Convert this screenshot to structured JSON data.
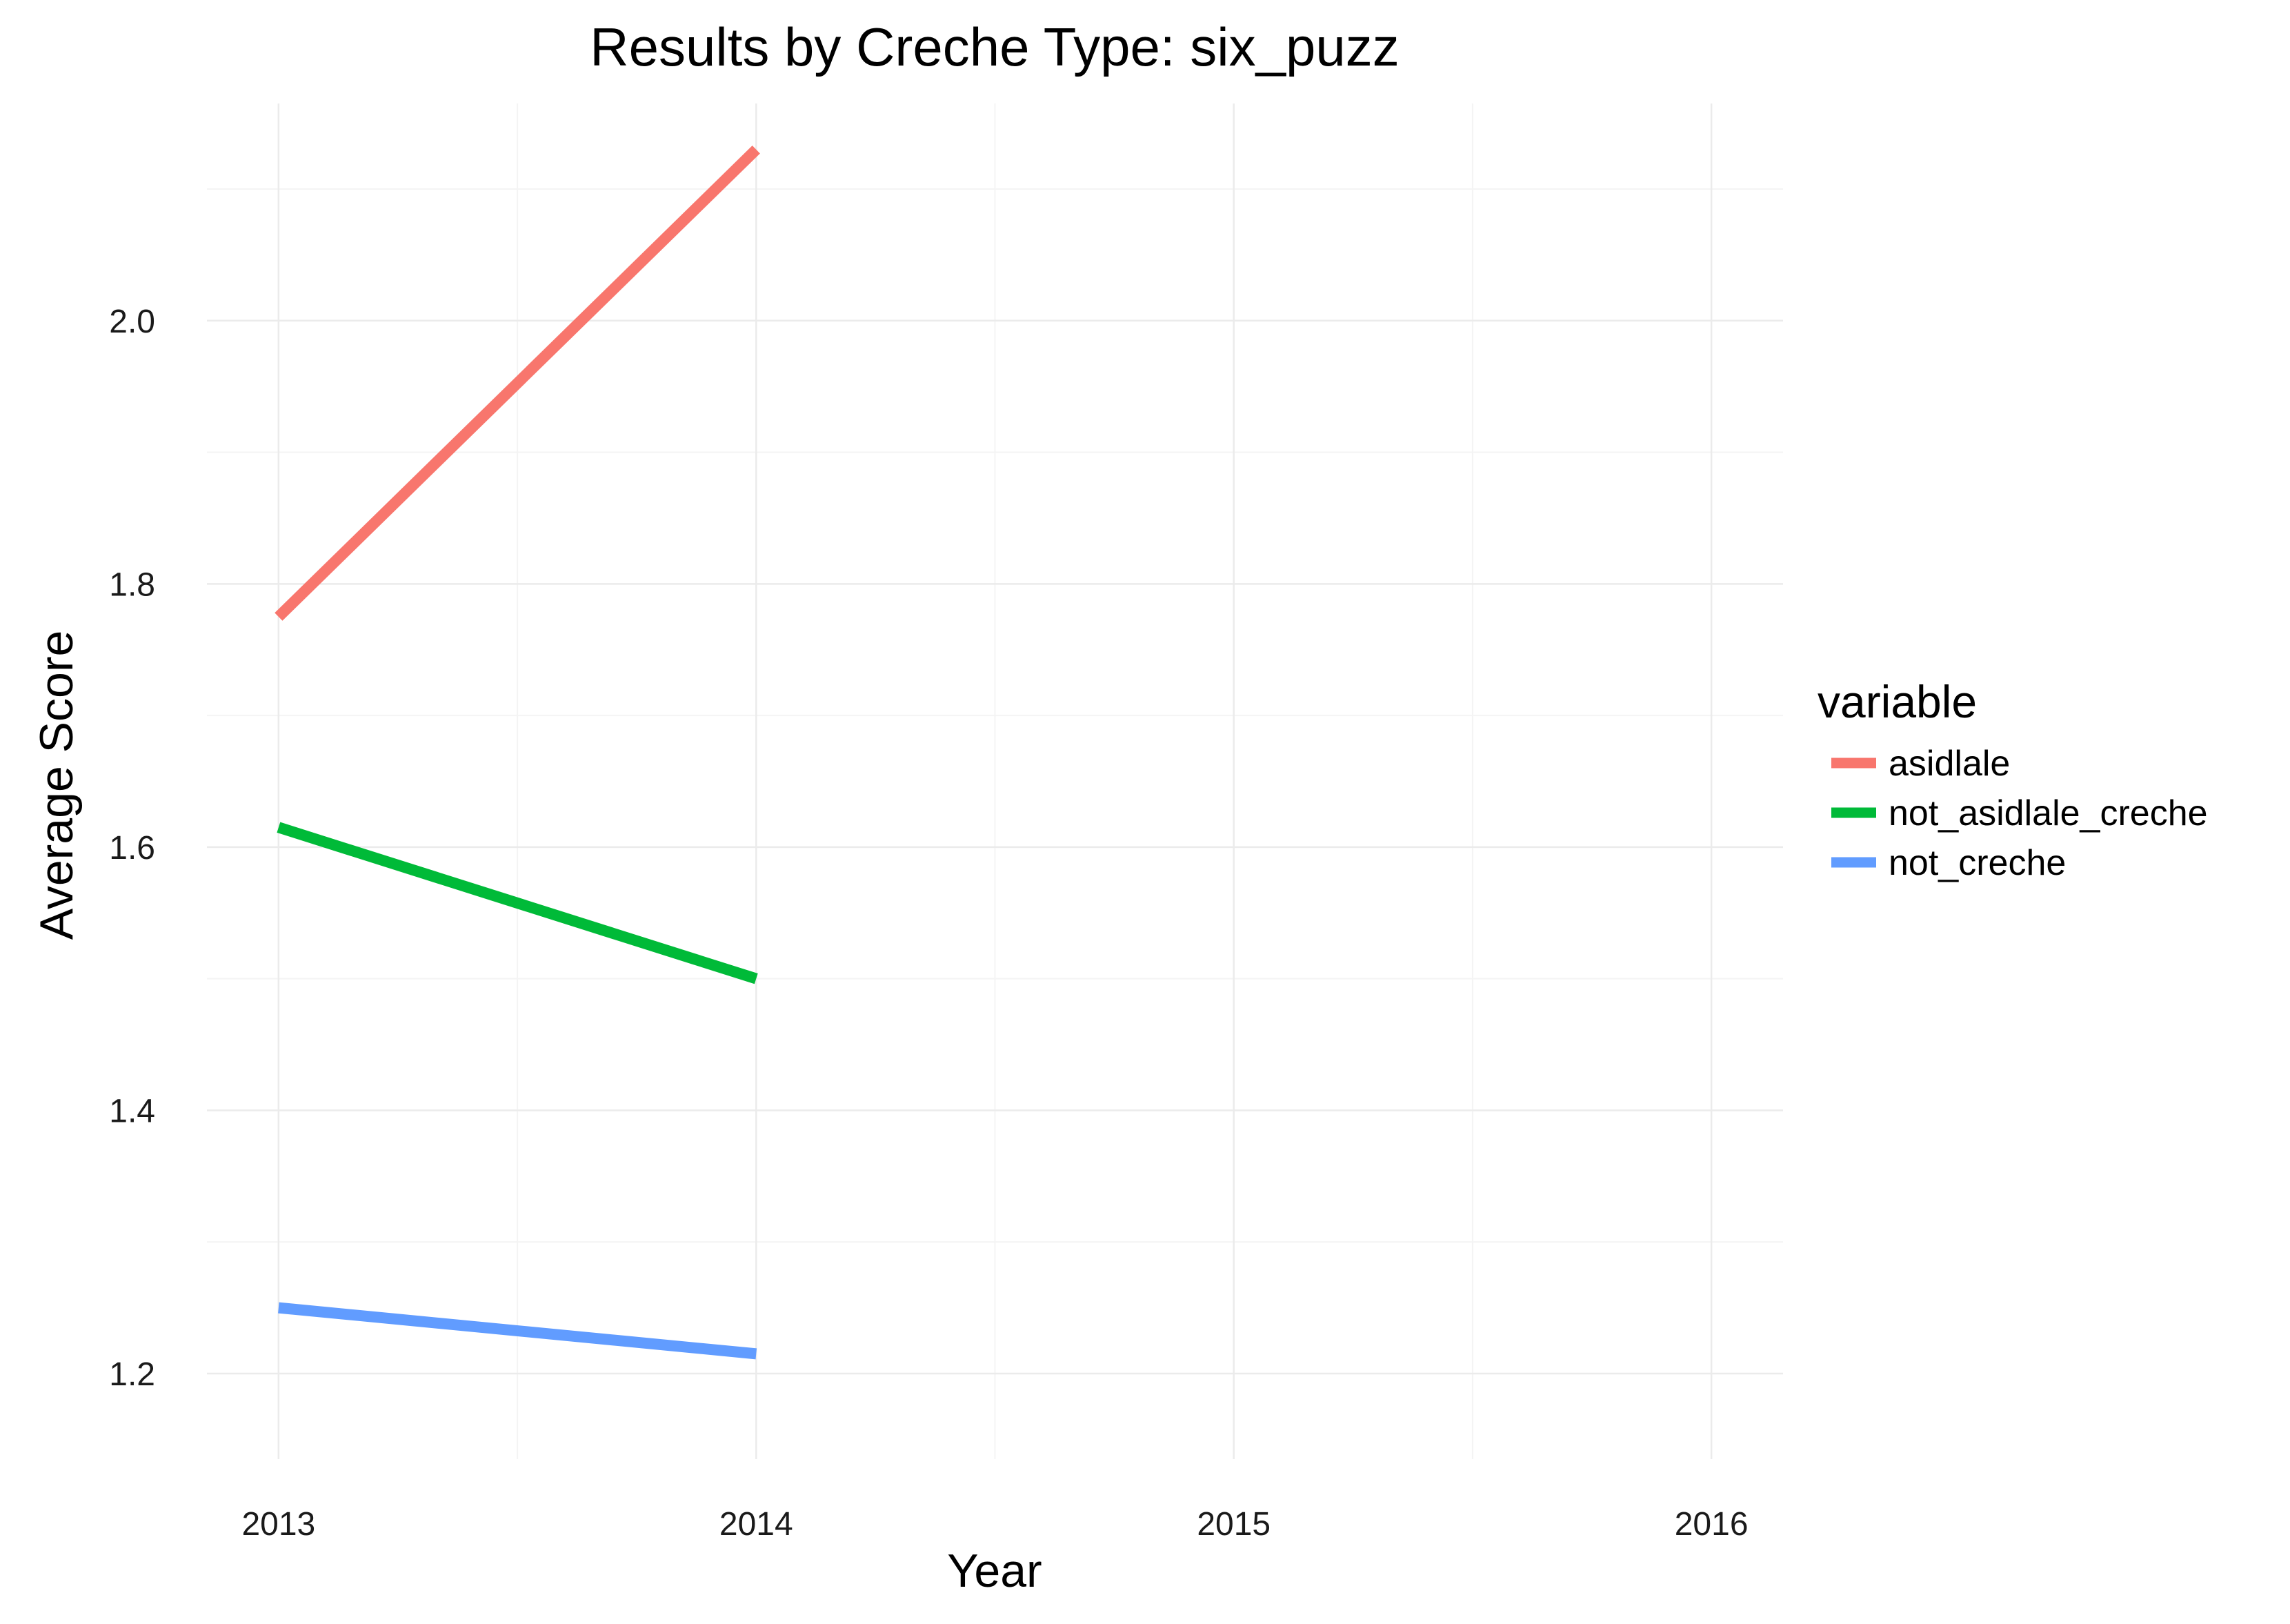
{
  "chart_data": {
    "type": "line",
    "title": "Results by Creche Type: six_puzz",
    "xlabel": "Year",
    "ylabel": "Average Score",
    "x_ticks": [
      "2013",
      "2014",
      "2015",
      "2016"
    ],
    "y_ticks": [
      "1.2",
      "1.4",
      "1.6",
      "1.8",
      "2.0"
    ],
    "xlim": [
      2012.85,
      2016.15
    ],
    "ylim": [
      1.135,
      2.165
    ],
    "grid": true,
    "legend": {
      "title": "variable",
      "position": "right"
    },
    "series": [
      {
        "name": "asidlale",
        "color": "#F8766D",
        "x": [
          2013,
          2014
        ],
        "y": [
          1.775,
          2.13
        ]
      },
      {
        "name": "not_asidlale_creche",
        "color": "#00BA38",
        "x": [
          2013,
          2014
        ],
        "y": [
          1.615,
          1.5
        ]
      },
      {
        "name": "not_creche",
        "color": "#619CFF",
        "x": [
          2013,
          2014
        ],
        "y": [
          1.25,
          1.215
        ]
      }
    ]
  }
}
